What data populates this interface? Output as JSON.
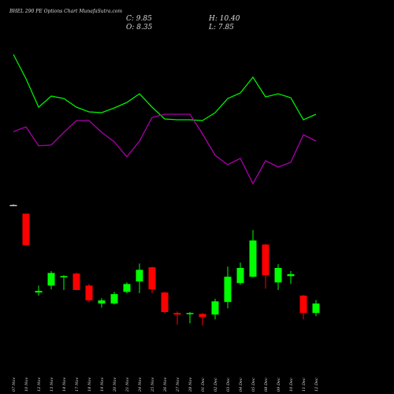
{
  "header": {
    "title": "BHEL 290 PE Options Chart MunafaSutra.com",
    "ohlc": [
      "C: 9.85",
      "H: 10.40",
      "O: 8.35",
      "L: 7.85"
    ]
  },
  "chart_data": [
    {
      "type": "line",
      "ylim": [
        0,
        220
      ],
      "series": [
        {
          "color": "#00ee00",
          "values": [
            191,
            160,
            124,
            138,
            135,
            124,
            118,
            117,
            123,
            130,
            141,
            124,
            109,
            108,
            108,
            107,
            117,
            135,
            142,
            162,
            137,
            141,
            136,
            108,
            115
          ]
        },
        {
          "color": "#aa00aa",
          "values": [
            93,
            99,
            75,
            76,
            92,
            107,
            107,
            92,
            80,
            61,
            81,
            111,
            115,
            115,
            115,
            90,
            63,
            51,
            59,
            27,
            56,
            48,
            54,
            89,
            81
          ]
        }
      ]
    },
    {
      "type": "candlestick",
      "ylim": [
        5.5,
        26.75
      ],
      "up_color": "#00ff00",
      "down_color": "#ff0000",
      "categories": [
        "07 Nov",
        "10 Nov",
        "12 Nov",
        "13 Nov",
        "14 Nov",
        "17 Nov",
        "18 Nov",
        "19 Nov",
        "20 Nov",
        "21 Nov",
        "24 Nov",
        "25 Nov",
        "26 Nov",
        "27 Nov",
        "28 Nov",
        "01 Dec",
        "02 Dec",
        "03 Dec",
        "04 Dec",
        "05 Dec",
        "08 Dec",
        "09 Dec",
        "10 Dec",
        "11 Dec",
        "12 Dec"
      ],
      "open": [
        25.5,
        24.1,
        11.6,
        12.7,
        14.0,
        14.6,
        12.7,
        9.85,
        9.85,
        11.7,
        13.35,
        15.6,
        11.6,
        8.35,
        8.2,
        8.2,
        8.1,
        10.1,
        13.1,
        14.1,
        19.2,
        13.2,
        14.2,
        11.1,
        8.35
      ],
      "high": [
        25.6,
        24.1,
        12.7,
        15.0,
        14.35,
        14.75,
        12.95,
        10.7,
        11.7,
        13.2,
        16.2,
        15.7,
        11.7,
        8.6,
        8.5,
        8.35,
        10.6,
        15.7,
        16.35,
        21.5,
        19.35,
        16.1,
        15.0,
        11.2,
        10.4
      ],
      "low": [
        25.4,
        19.1,
        11.1,
        12.1,
        12.0,
        12.0,
        10.1,
        9.2,
        9.7,
        11.5,
        11.5,
        11.5,
        8.35,
        6.5,
        6.7,
        6.35,
        7.35,
        9.1,
        12.85,
        14.0,
        12.2,
        12.0,
        12.95,
        7.35,
        7.85
      ],
      "close": [
        25.5,
        19.1,
        11.85,
        14.7,
        14.2,
        12.0,
        10.35,
        10.35,
        11.35,
        12.95,
        15.2,
        12.1,
        8.5,
        8.1,
        8.35,
        7.7,
        10.2,
        14.1,
        15.5,
        19.85,
        14.35,
        15.5,
        14.5,
        8.35,
        9.85
      ]
    }
  ]
}
